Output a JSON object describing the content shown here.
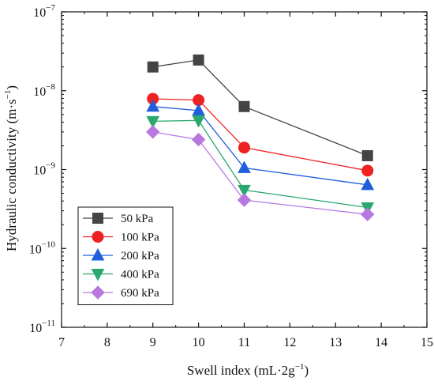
{
  "chart_data": {
    "type": "line",
    "xlabel": "Swell index (mL·2g",
    "xlabel_sup": "−1",
    "xlabel_end": ")",
    "ylabel": "Hydraulic conductivity (m·s",
    "ylabel_sup": "−1",
    "ylabel_end": ")",
    "xlim": [
      7,
      15
    ],
    "ylim": [
      1e-11,
      1e-07
    ],
    "y_scale": "log",
    "x_ticks": [
      "7",
      "8",
      "9",
      "10",
      "11",
      "12",
      "13",
      "14",
      "15"
    ],
    "y_ticks": [
      {
        "value": 1e-11,
        "base": "10",
        "exp": "−11"
      },
      {
        "value": 1e-10,
        "base": "10",
        "exp": "−10"
      },
      {
        "value": 1e-09,
        "base": "10",
        "exp": "−9"
      },
      {
        "value": 1e-08,
        "base": "10",
        "exp": "−8"
      },
      {
        "value": 1e-07,
        "base": "10",
        "exp": "−7"
      }
    ],
    "grid": false,
    "legend_position": "bottom-left",
    "series": [
      {
        "name": "50 kPa",
        "marker": "square",
        "color": "#444444",
        "line_color": "#444444",
        "x": [
          9.0,
          10.0,
          11.0,
          13.7
        ],
        "y": [
          2e-08,
          2.45e-08,
          6.3e-09,
          1.5e-09
        ]
      },
      {
        "name": "100 kPa",
        "marker": "circle",
        "color": "#ee2222",
        "line_color": "#ee2222",
        "x": [
          9.0,
          10.0,
          11.0,
          13.7
        ],
        "y": [
          7.9e-09,
          7.6e-09,
          1.9e-09,
          9.7e-10
        ]
      },
      {
        "name": "200 kPa",
        "marker": "triangle-up",
        "color": "#1f5fdb",
        "line_color": "#1f5fdb",
        "x": [
          9.0,
          10.0,
          11.0,
          13.7
        ],
        "y": [
          6.3e-09,
          5.6e-09,
          1.05e-09,
          6.4e-10
        ]
      },
      {
        "name": "400 kPa",
        "marker": "triangle-down",
        "color": "#2aa86e",
        "line_color": "#2aa86e",
        "x": [
          9.0,
          10.0,
          11.0,
          13.7
        ],
        "y": [
          4.1e-09,
          4.2e-09,
          5.5e-10,
          3.3e-10
        ]
      },
      {
        "name": "690 kPa",
        "marker": "diamond",
        "color": "#b779e0",
        "line_color": "#b779e0",
        "x": [
          9.0,
          10.0,
          11.0,
          13.7
        ],
        "y": [
          3e-09,
          2.4e-09,
          4.1e-10,
          2.7e-10
        ]
      }
    ]
  }
}
